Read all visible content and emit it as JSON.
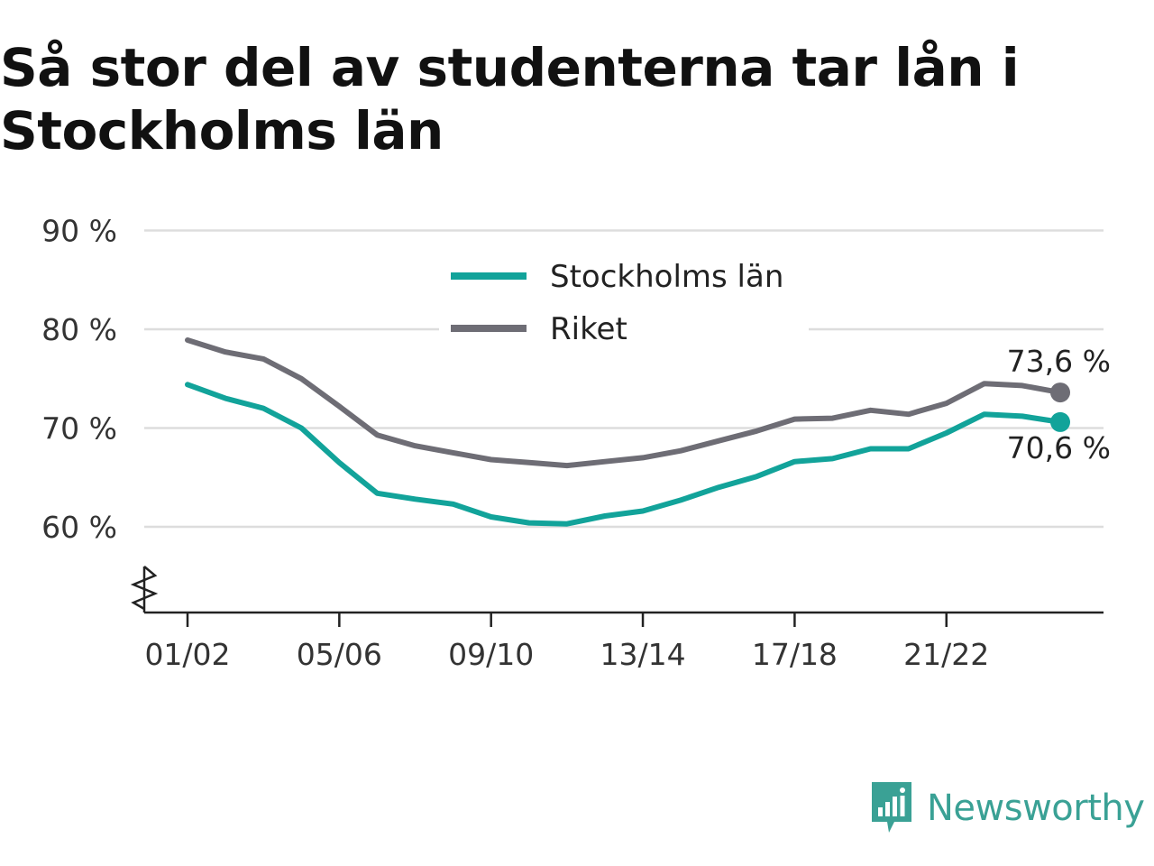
{
  "title": "Så stor del av studenterna tar lån i Stockholms län",
  "brand": {
    "name": "Newsworthy",
    "color": "#3aa195",
    "icon": "newsworthy-logo-icon"
  },
  "colors": {
    "stockholm": "#12a39a",
    "riket": "#6e6d75",
    "grid": "#dddddd",
    "axis": "#222222"
  },
  "chart_data": {
    "type": "line",
    "title": "Så stor del av studenterna tar lån i Stockholms län",
    "xlabel": "",
    "ylabel": "",
    "ylim": [
      51.5,
      90
    ],
    "y_ticks": [
      60,
      70,
      80,
      90
    ],
    "y_tick_labels": [
      "60 %",
      "70 %",
      "80 %",
      "90 %"
    ],
    "x_tick_labels": [
      "01/02",
      "05/06",
      "09/10",
      "13/14",
      "17/18",
      "21/22"
    ],
    "x_tick_positions": [
      "01/02",
      "05/06",
      "09/10",
      "13/14",
      "17/18",
      "21/22"
    ],
    "x": [
      "01/02",
      "02/03",
      "03/04",
      "04/05",
      "05/06",
      "06/07",
      "07/08",
      "08/09",
      "09/10",
      "10/11",
      "11/12",
      "12/13",
      "13/14",
      "14/15",
      "15/16",
      "16/17",
      "17/18",
      "18/19",
      "19/20",
      "20/21",
      "21/22",
      "22/23",
      "23/24",
      "24/25"
    ],
    "grid": true,
    "axis_break": true,
    "legend_position": "top-center",
    "series": [
      {
        "name": "Stockholms län",
        "color": "#12a39a",
        "values": [
          74.4,
          73.0,
          72.0,
          70.0,
          66.5,
          63.4,
          62.8,
          62.3,
          61.0,
          60.4,
          60.3,
          61.1,
          61.6,
          62.7,
          64.0,
          65.1,
          66.6,
          66.9,
          67.9,
          67.9,
          69.5,
          71.4,
          71.2,
          70.6
        ],
        "end_label": "70,6 %"
      },
      {
        "name": "Riket",
        "color": "#6e6d75",
        "values": [
          78.9,
          77.7,
          77.0,
          75.0,
          72.2,
          69.3,
          68.2,
          67.5,
          66.8,
          66.5,
          66.2,
          66.6,
          67.0,
          67.7,
          68.7,
          69.7,
          70.9,
          71.0,
          71.8,
          71.4,
          72.5,
          74.5,
          74.3,
          73.6
        ],
        "end_label": "73,6 %"
      }
    ]
  }
}
